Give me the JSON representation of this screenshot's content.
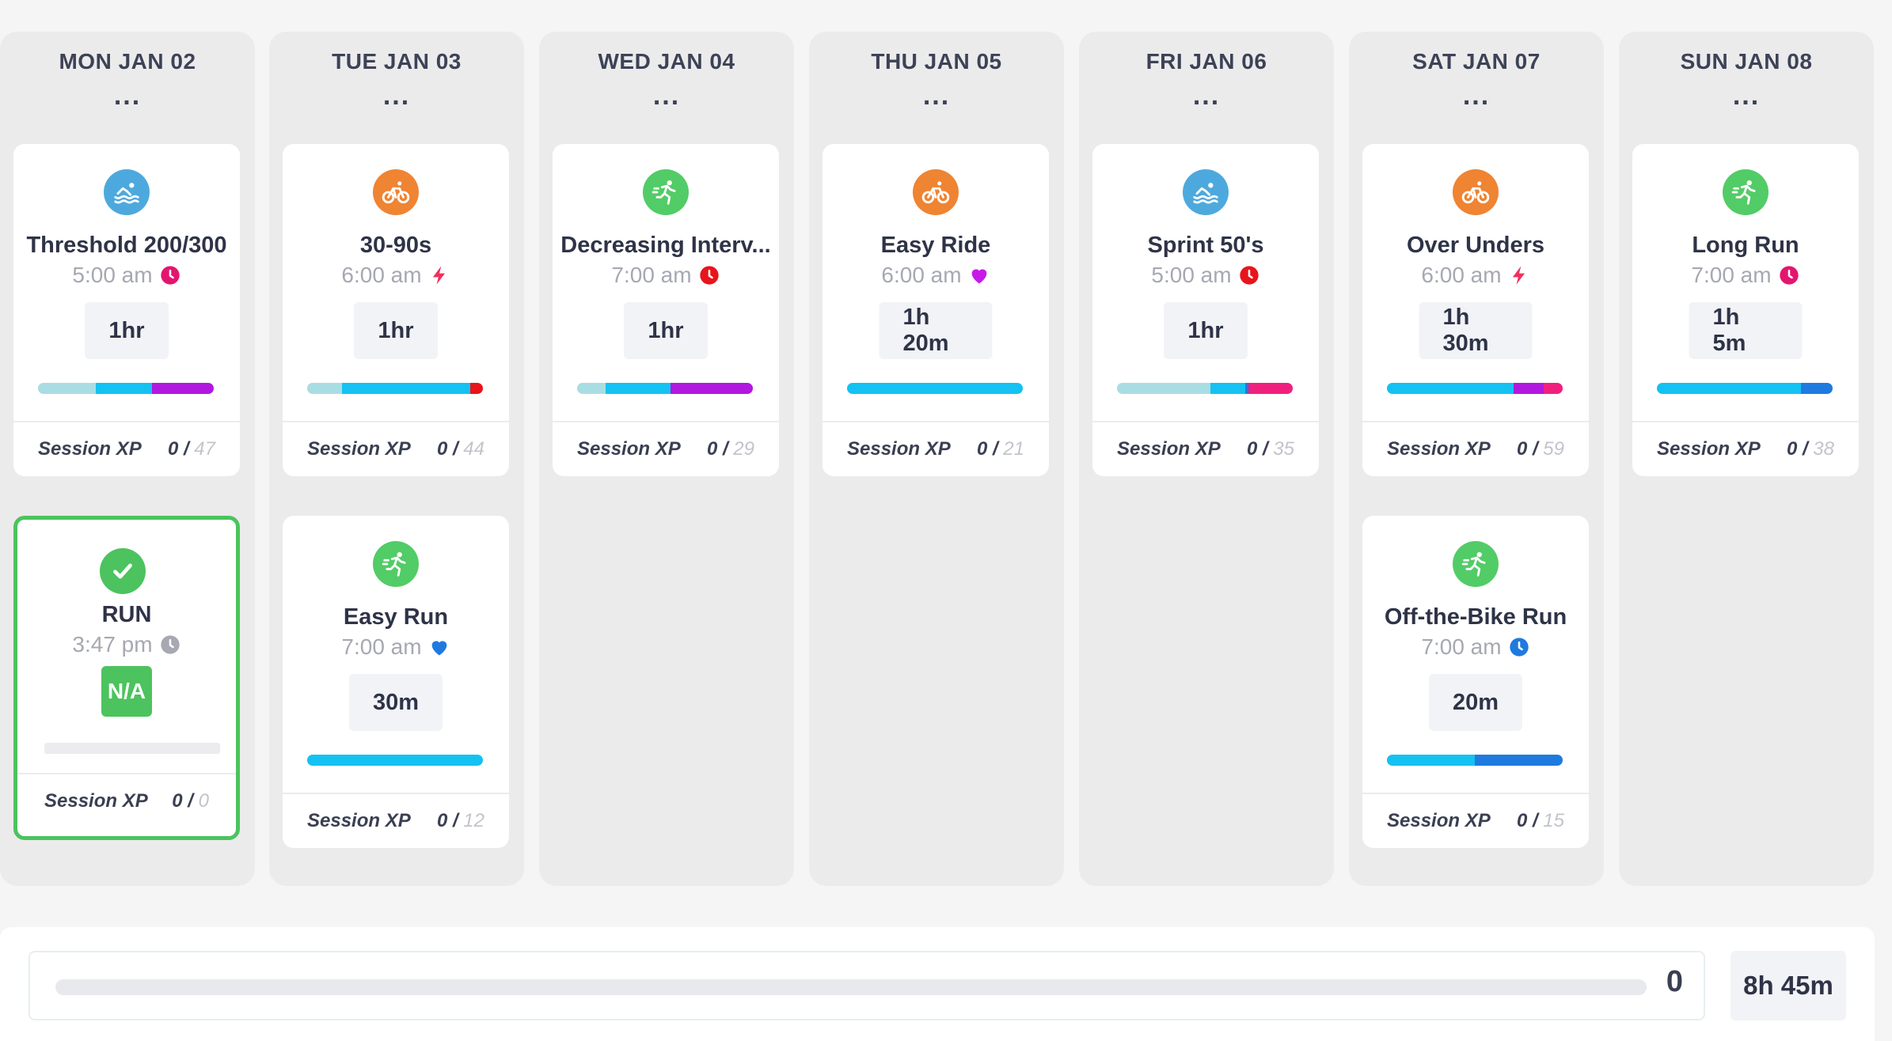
{
  "colors": {
    "swim": "#4da9dd",
    "bike": "#ef8433",
    "run": "#52cc66",
    "done": "#4cc35e",
    "zone_recovery": "#a9dde4",
    "zone_endurance": "#13c2f2",
    "zone_tempo": "#1f7ae0",
    "zone_threshold": "#c71ae8",
    "zone_vo2": "#f01f7e",
    "zone_max": "#e8141b"
  },
  "days": [
    {
      "label": "MON JAN 02",
      "menu": "...",
      "workouts": [
        {
          "sport": "swim",
          "icon": "swim-icon",
          "title": "Threshold 200/300",
          "time": "5:00 am",
          "badge": "clock-icon",
          "badge_color": "#e4156f",
          "duration": "1hr",
          "zones": [
            {
              "c": "#a9dde4",
              "w": 0.33
            },
            {
              "c": "#13c2f2",
              "w": 0.32
            },
            {
              "c": "#b217e0",
              "w": 0.35
            }
          ],
          "xp_label": "Session XP",
          "xp": "0 /",
          "xp_max": "47"
        },
        {
          "sport": "done",
          "icon": "check-icon",
          "title": "RUN",
          "time": "3:47 pm",
          "badge": "clock-icon",
          "badge_color": "#a6a8b2",
          "duration": "N/A",
          "completed": true,
          "zones": [],
          "xp_label": "Session XP",
          "xp": "0 /",
          "xp_max": "0"
        }
      ]
    },
    {
      "label": "TUE JAN 03",
      "menu": "...",
      "workouts": [
        {
          "sport": "bike",
          "icon": "bike-icon",
          "title": "30-90s",
          "time": "6:00 am",
          "badge": "lightning-icon",
          "badge_color": "#f0305b",
          "duration": "1hr",
          "zones": [
            {
              "c": "#a9dde4",
              "w": 0.2
            },
            {
              "c": "#13c2f2",
              "w": 0.73
            },
            {
              "c": "#e8141b",
              "w": 0.07
            }
          ],
          "xp_label": "Session XP",
          "xp": "0 /",
          "xp_max": "44"
        },
        {
          "sport": "run",
          "icon": "run-icon",
          "title": "Easy Run",
          "time": "7:00 am",
          "badge": "heart-icon",
          "badge_color": "#1f7ae0",
          "duration": "30m",
          "zones": [
            {
              "c": "#13c2f2",
              "w": 1.0
            }
          ],
          "xp_label": "Session XP",
          "xp": "0 /",
          "xp_max": "12"
        }
      ]
    },
    {
      "label": "WED JAN 04",
      "menu": "...",
      "workouts": [
        {
          "sport": "run",
          "icon": "run-icon",
          "title": "Decreasing Interv...",
          "time": "7:00 am",
          "badge": "clock-icon",
          "badge_color": "#e8141b",
          "duration": "1hr",
          "zones": [
            {
              "c": "#a9dde4",
              "w": 0.16
            },
            {
              "c": "#13c2f2",
              "w": 0.37
            },
            {
              "c": "#b217e0",
              "w": 0.47
            }
          ],
          "xp_label": "Session XP",
          "xp": "0 /",
          "xp_max": "29"
        }
      ]
    },
    {
      "label": "THU JAN 05",
      "menu": "...",
      "workouts": [
        {
          "sport": "bike",
          "icon": "bike-icon",
          "title": "Easy Ride",
          "time": "6:00 am",
          "badge": "heart-icon",
          "badge_color": "#c71ae8",
          "duration": "1h 20m",
          "zones": [
            {
              "c": "#13c2f2",
              "w": 1.0
            }
          ],
          "xp_label": "Session XP",
          "xp": "0 /",
          "xp_max": "21"
        }
      ]
    },
    {
      "label": "FRI JAN 06",
      "menu": "...",
      "workouts": [
        {
          "sport": "swim",
          "icon": "swim-icon",
          "title": "Sprint 50's",
          "time": "5:00 am",
          "badge": "clock-icon",
          "badge_color": "#e8141b",
          "duration": "1hr",
          "zones": [
            {
              "c": "#a9dde4",
              "w": 0.53
            },
            {
              "c": "#13c2f2",
              "w": 0.2
            },
            {
              "c": "#1f7ae0",
              "w": 0.02
            },
            {
              "c": "#f01f7e",
              "w": 0.25
            }
          ],
          "xp_label": "Session XP",
          "xp": "0 /",
          "xp_max": "35"
        }
      ]
    },
    {
      "label": "SAT JAN 07",
      "menu": "...",
      "workouts": [
        {
          "sport": "bike",
          "icon": "bike-icon",
          "title": "Over Unders",
          "time": "6:00 am",
          "badge": "lightning-icon",
          "badge_color": "#f0305b",
          "duration": "1h 30m",
          "zones": [
            {
              "c": "#13c2f2",
              "w": 0.72
            },
            {
              "c": "#b217e0",
              "w": 0.17
            },
            {
              "c": "#f01f7e",
              "w": 0.11
            }
          ],
          "xp_label": "Session XP",
          "xp": "0 /",
          "xp_max": "59"
        },
        {
          "sport": "run",
          "icon": "run-icon",
          "title": "Off-the-Bike Run",
          "time": "7:00 am",
          "badge": "clock-icon",
          "badge_color": "#1f7ae0",
          "duration": "20m",
          "zones": [
            {
              "c": "#13c2f2",
              "w": 0.5
            },
            {
              "c": "#1f7ae0",
              "w": 0.5
            }
          ],
          "xp_label": "Session XP",
          "xp": "0 /",
          "xp_max": "15"
        }
      ]
    },
    {
      "label": "SUN JAN 08",
      "menu": "...",
      "workouts": [
        {
          "sport": "run",
          "icon": "run-icon",
          "title": "Long Run",
          "time": "7:00 am",
          "badge": "clock-icon",
          "badge_color": "#e4156f",
          "duration": "1h 5m",
          "zones": [
            {
              "c": "#13c2f2",
              "w": 0.82
            },
            {
              "c": "#1f7ae0",
              "w": 0.18
            }
          ],
          "xp_label": "Session XP",
          "xp": "0 /",
          "xp_max": "38"
        }
      ]
    }
  ],
  "footer": {
    "progress": 0,
    "score": "0",
    "total_time": "8h 45m"
  }
}
